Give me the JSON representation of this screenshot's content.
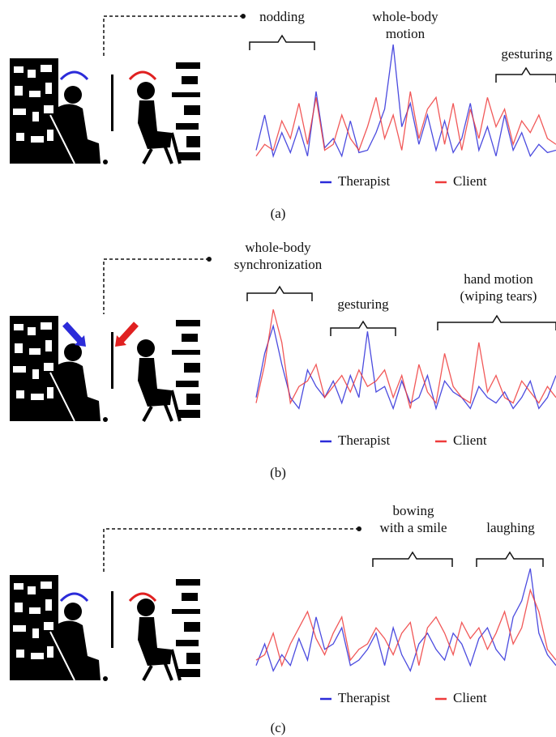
{
  "chart_data": [
    {
      "type": "line",
      "annotations": [
        {
          "lines": [
            "nodding"
          ]
        },
        {
          "lines": [
            "whole-body",
            "motion"
          ]
        },
        {
          "lines": [
            "gesturing"
          ]
        }
      ],
      "series": [
        {
          "name": "Therapist",
          "color": "#2b2bd9",
          "values": [
            10,
            40,
            5,
            25,
            8,
            30,
            5,
            60,
            12,
            20,
            5,
            35,
            8,
            10,
            25,
            45,
            100,
            30,
            50,
            15,
            40,
            10,
            35,
            8,
            20,
            50,
            10,
            30,
            5,
            40,
            10,
            25,
            5,
            15,
            8,
            10
          ]
        },
        {
          "name": "Client",
          "color": "#ee3b3b",
          "values": [
            5,
            15,
            10,
            35,
            20,
            50,
            15,
            55,
            10,
            15,
            40,
            20,
            10,
            30,
            55,
            20,
            40,
            10,
            60,
            20,
            45,
            55,
            15,
            50,
            10,
            45,
            20,
            55,
            30,
            45,
            15,
            35,
            25,
            40,
            20,
            15
          ]
        }
      ],
      "caption": "(a)"
    },
    {
      "type": "line",
      "annotations": [
        {
          "lines": [
            "whole-body",
            "synchronization"
          ]
        },
        {
          "lines": [
            "gesturing"
          ]
        },
        {
          "lines": [
            "hand motion",
            "(wiping tears)"
          ]
        }
      ],
      "series": [
        {
          "name": "Therapist",
          "color": "#2b2bd9",
          "values": [
            20,
            60,
            85,
            50,
            20,
            10,
            45,
            30,
            20,
            35,
            15,
            40,
            20,
            80,
            25,
            30,
            10,
            35,
            15,
            20,
            40,
            10,
            35,
            25,
            20,
            10,
            30,
            20,
            15,
            25,
            10,
            20,
            35,
            10,
            20,
            40
          ]
        },
        {
          "name": "Client",
          "color": "#ee3b3b",
          "values": [
            15,
            50,
            100,
            70,
            15,
            30,
            35,
            50,
            20,
            30,
            40,
            25,
            45,
            30,
            35,
            45,
            20,
            40,
            10,
            50,
            25,
            15,
            60,
            30,
            20,
            15,
            70,
            25,
            40,
            20,
            15,
            35,
            25,
            15,
            30,
            20
          ]
        }
      ],
      "caption": "(b)"
    },
    {
      "type": "line",
      "annotations": [
        {
          "lines": [
            "bowing",
            "with a smile"
          ]
        },
        {
          "lines": [
            "laughing"
          ]
        }
      ],
      "series": [
        {
          "name": "Therapist",
          "color": "#2b2bd9",
          "values": [
            10,
            30,
            5,
            20,
            10,
            35,
            15,
            55,
            25,
            30,
            45,
            10,
            15,
            25,
            40,
            10,
            45,
            20,
            5,
            30,
            40,
            25,
            15,
            40,
            30,
            10,
            35,
            45,
            25,
            15,
            55,
            70,
            100,
            40,
            20,
            10
          ]
        },
        {
          "name": "Client",
          "color": "#ee3b3b",
          "values": [
            15,
            20,
            40,
            10,
            30,
            45,
            60,
            35,
            20,
            40,
            55,
            15,
            25,
            30,
            45,
            35,
            20,
            40,
            50,
            10,
            45,
            55,
            40,
            20,
            50,
            35,
            45,
            25,
            40,
            60,
            30,
            45,
            80,
            60,
            25,
            15
          ]
        }
      ],
      "caption": "(c)"
    }
  ]
}
